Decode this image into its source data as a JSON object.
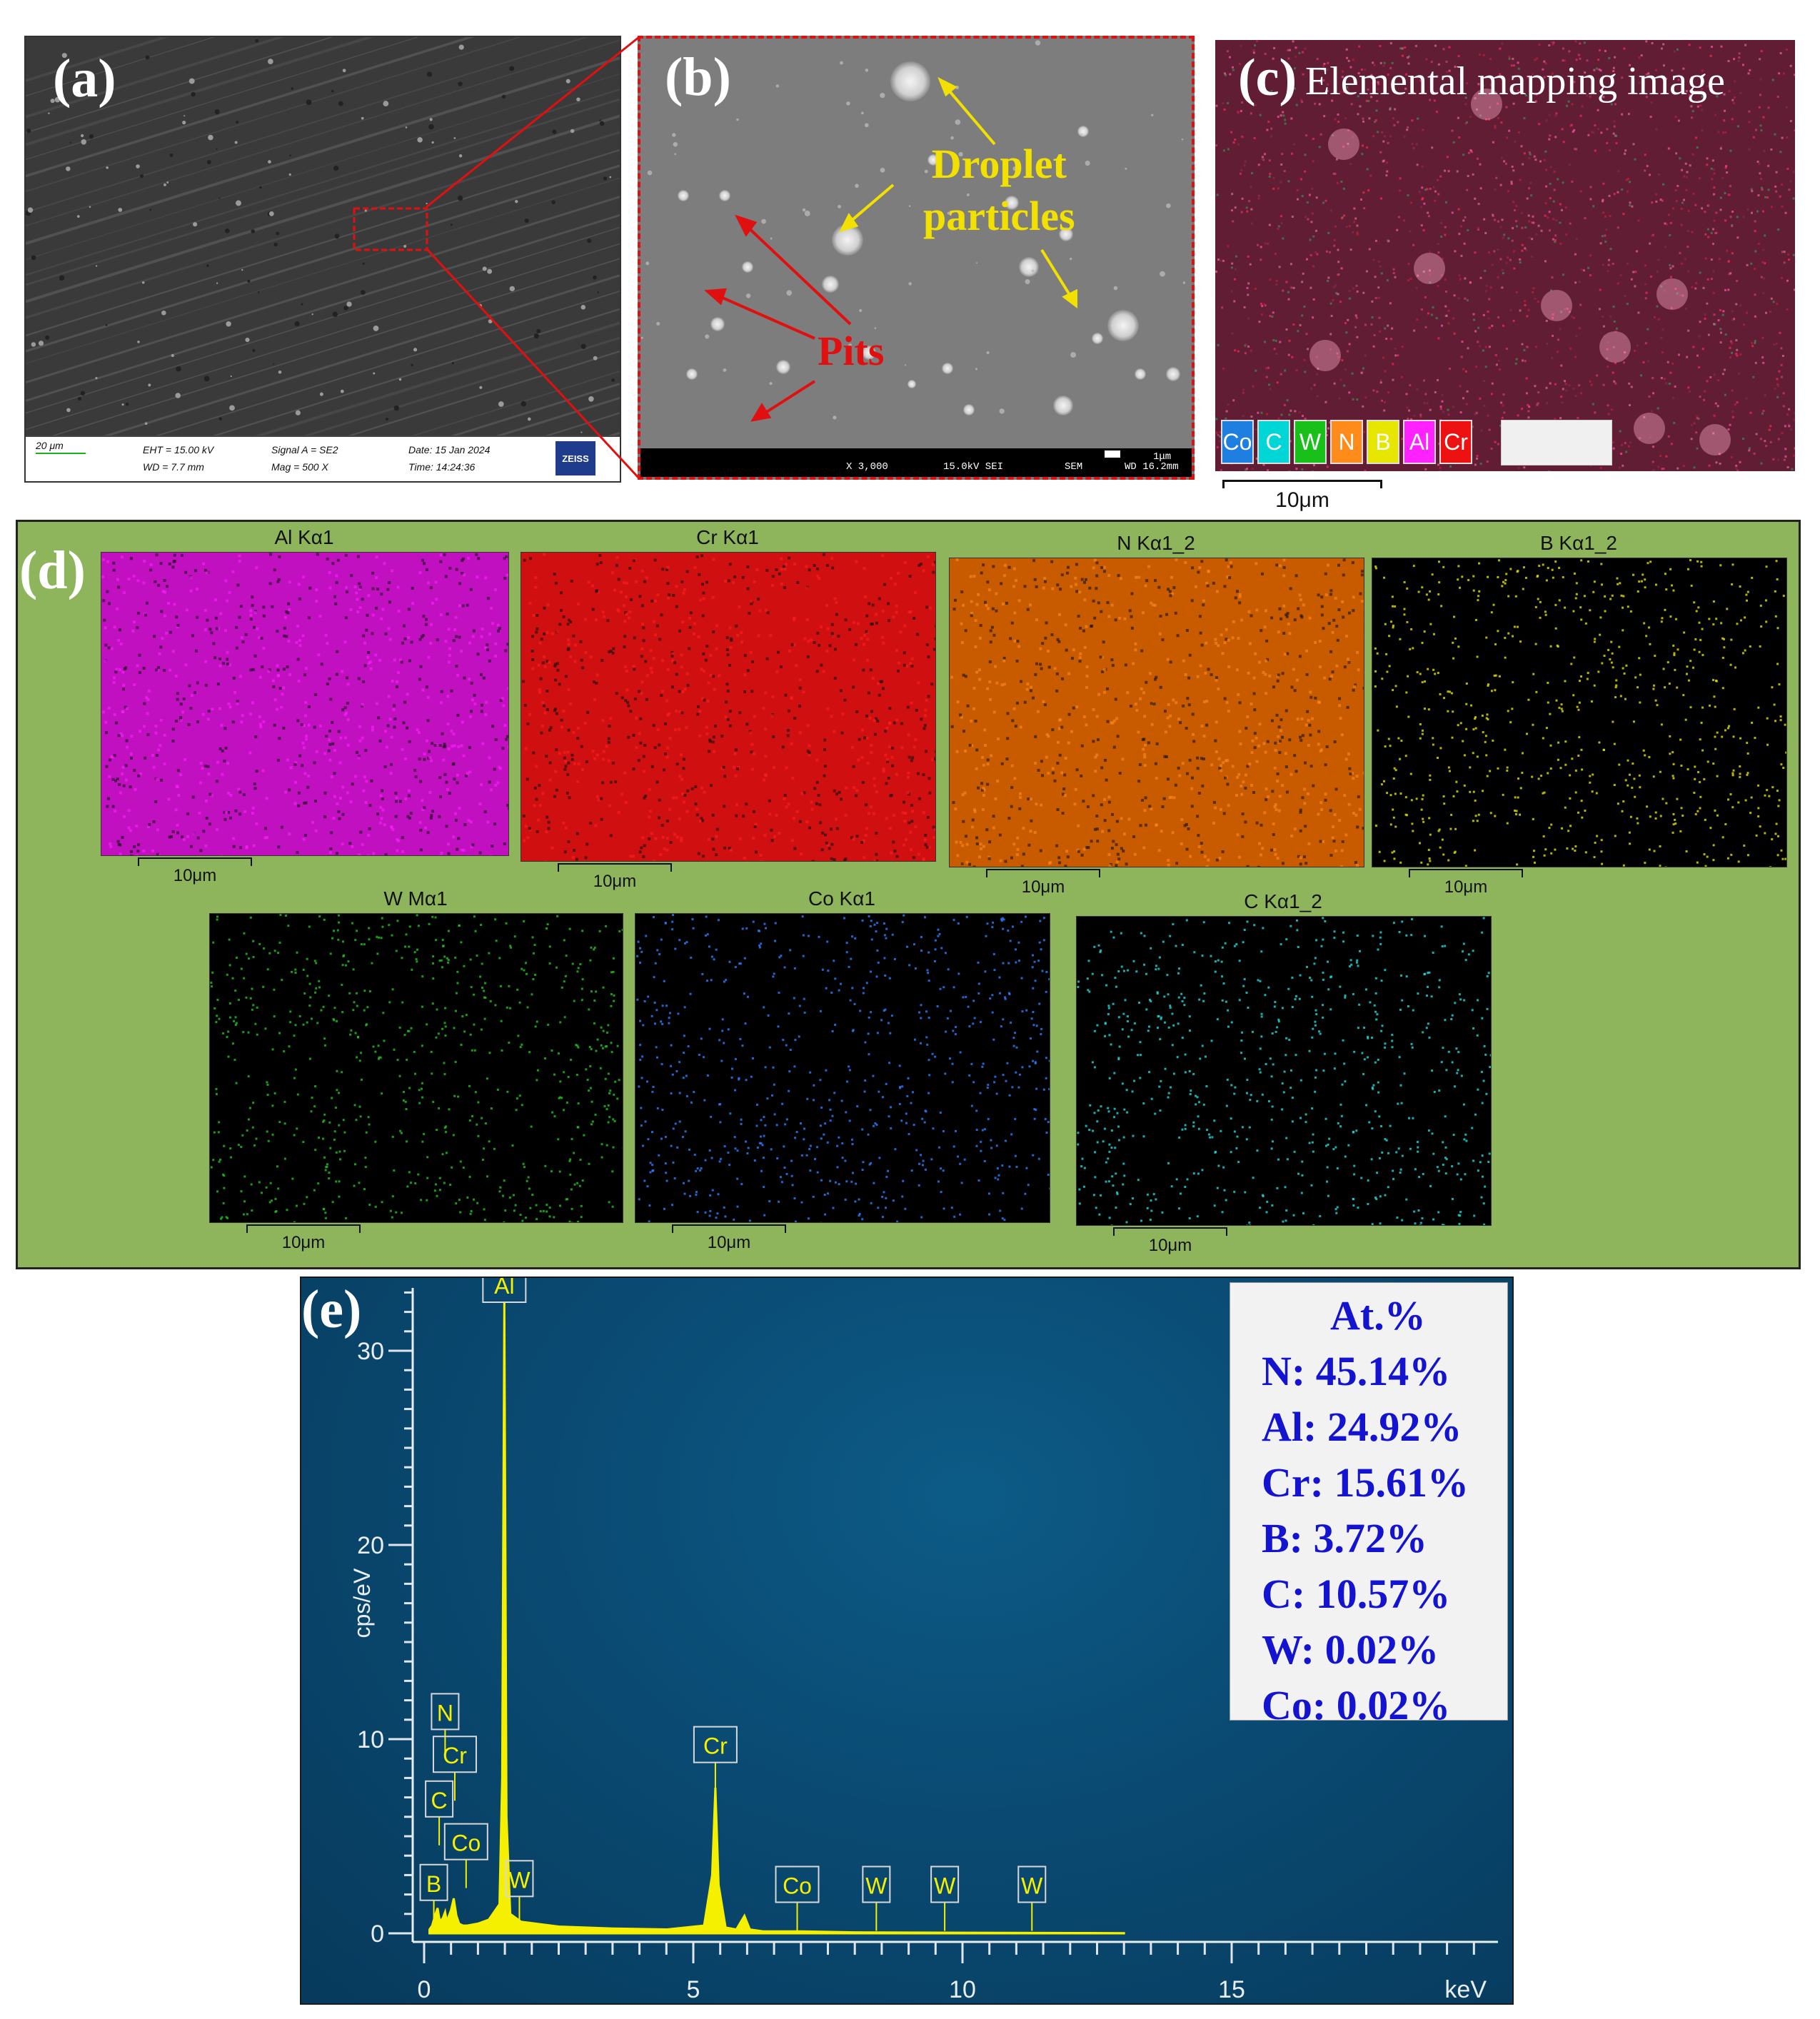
{
  "panels": {
    "a": {
      "label": "(a)",
      "info": {
        "scale": "20 μm",
        "eht": "EHT = 15.00 kV",
        "wd": "WD = 7.7 mm",
        "signal": "Signal A = SE2",
        "mag": "Mag = 500 X",
        "date": "Date: 15 Jan 2024",
        "time": "Time: 14:24:36",
        "logo": "ZEISS"
      }
    },
    "b": {
      "label": "(b)",
      "annotations": {
        "droplet_line1": "Droplet",
        "droplet_line2": "particles",
        "pits": "Pits"
      },
      "info": {
        "mag": "X 3,000",
        "kv": "15.0kV SEI",
        "mode": "SEM",
        "scale": "1μm",
        "wd": "WD 16.2mm"
      }
    },
    "c": {
      "label": "(c)",
      "title": "Elemental mapping image",
      "legend": [
        {
          "el": "Co",
          "color": "#1e7fe0"
        },
        {
          "el": "C",
          "color": "#00d6d6"
        },
        {
          "el": "W",
          "color": "#19c019"
        },
        {
          "el": "N",
          "color": "#ff8c1a"
        },
        {
          "el": "B",
          "color": "#e6e600"
        },
        {
          "el": "Al",
          "color": "#ff22ff"
        },
        {
          "el": "Cr",
          "color": "#ee1111"
        }
      ],
      "scale": "10μm"
    },
    "d": {
      "label": "(d)",
      "maps": [
        {
          "title": "Al Kα1",
          "color": "#ff20ff",
          "bg": "#c010c0",
          "scale": "10μm"
        },
        {
          "title": "Cr Kα1",
          "color": "#ff2020",
          "bg": "#d01010",
          "scale": "10μm"
        },
        {
          "title": "N Kα1_2",
          "color": "#ff8a20",
          "bg": "#c85a00",
          "scale": "10μm"
        },
        {
          "title": "B Kα1_2",
          "color": "#e0e000",
          "bg": "#000000",
          "scale": "10μm"
        },
        {
          "title": "W Mα1",
          "color": "#22c022",
          "bg": "#000000",
          "scale": "10μm"
        },
        {
          "title": "Co Kα1",
          "color": "#2a7fff",
          "bg": "#000000",
          "scale": "10μm"
        },
        {
          "title": "C Kα1_2",
          "color": "#20d8d8",
          "bg": "#000000",
          "scale": "10μm"
        }
      ]
    },
    "e": {
      "label": "(e)",
      "composition_title": "At.%",
      "composition": [
        "N:  45.14%",
        "Al: 24.92%",
        "Cr: 15.61%",
        "B:  3.72%",
        "C:  10.57%",
        "W:  0.02%",
        "Co: 0.02%"
      ]
    }
  },
  "chart_data": {
    "type": "line",
    "ylabel": "cps/eV",
    "xlabel": "keV",
    "xlim": [
      0,
      20
    ],
    "ylim": [
      0,
      33
    ],
    "x_ticks": [
      0,
      5,
      10,
      15
    ],
    "y_ticks": [
      0,
      10,
      20,
      30
    ],
    "series": [
      {
        "x": [
          0.1,
          0.15,
          0.2,
          0.25,
          0.28,
          0.3,
          0.35,
          0.39,
          0.42,
          0.5,
          0.55,
          0.6,
          0.65,
          0.72,
          0.8,
          1.0,
          1.2,
          1.4,
          1.45,
          1.49,
          1.53,
          1.6,
          1.8,
          2.5,
          3.5,
          4.5,
          5.2,
          5.35,
          5.41,
          5.47,
          5.6,
          5.8,
          5.95,
          6.05,
          6.3,
          7,
          8,
          10,
          12,
          13
        ],
        "y": [
          0.2,
          0.4,
          0.9,
          1.3,
          0.8,
          0.6,
          0.8,
          1.1,
          0.6,
          1.2,
          1.8,
          0.9,
          0.5,
          0.4,
          0.4,
          0.5,
          0.7,
          1.5,
          8,
          32.5,
          6,
          1.0,
          0.6,
          0.35,
          0.25,
          0.2,
          0.4,
          3,
          7.5,
          2.5,
          0.3,
          0.2,
          0.9,
          0.2,
          0.1,
          0.1,
          0.05,
          0.03,
          0.02,
          0.01
        ]
      }
    ],
    "peak_labels": [
      {
        "label": "Al",
        "x": 1.49,
        "y": 32.5
      },
      {
        "label": "N",
        "x": 0.39,
        "y": 10.5
      },
      {
        "label": "Cr",
        "x": 0.57,
        "y": 8.3
      },
      {
        "label": "C",
        "x": 0.28,
        "y": 6.0
      },
      {
        "label": "Co",
        "x": 0.78,
        "y": 3.8
      },
      {
        "label": "B",
        "x": 0.18,
        "y": 1.7
      },
      {
        "label": "W",
        "x": 1.77,
        "y": 1.9
      },
      {
        "label": "Cr",
        "x": 5.41,
        "y": 8.8
      },
      {
        "label": "Co",
        "x": 6.93,
        "y": 1.6
      },
      {
        "label": "W",
        "x": 8.4,
        "y": 1.6
      },
      {
        "label": "W",
        "x": 9.67,
        "y": 1.6
      },
      {
        "label": "W",
        "x": 11.29,
        "y": 1.6
      }
    ]
  }
}
